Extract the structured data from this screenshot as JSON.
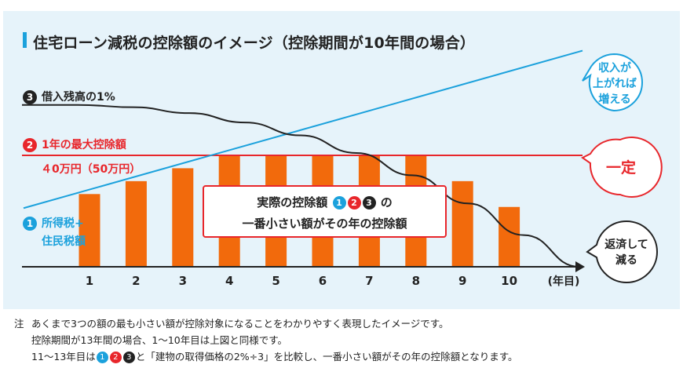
{
  "title": "住宅ローン減税の控除額のイメージ（控除期間が10年間の場合）",
  "labels": {
    "balance_num": "3",
    "balance_text": "借入残高の1%",
    "max_num": "2",
    "max_text": "1年の最大控除額",
    "max_amount": "４0万円（50万円）",
    "tax_num": "1",
    "tax_line1": "所得税+",
    "tax_line2": "住民税額"
  },
  "bubbles": {
    "income": [
      "収入が",
      "上がれば",
      "増える"
    ],
    "fixed": "一定",
    "repay": [
      "返済して",
      "減る"
    ]
  },
  "center_box": {
    "line1_pre": "実際の控除額",
    "n1": "1",
    "n2": "2",
    "n3": "3",
    "line1_post": "の",
    "line2": "一番小さい額がその年の控除額"
  },
  "notes": {
    "prefix": "注",
    "line1": "あくまで3つの額の最も小さい額が控除対象になることをわかりやすく表現したイメージです。",
    "line2": "控除期間が13年間の場合、1〜10年目は上図と同様です。",
    "line3_pre": "11〜13年目は",
    "n1": "1",
    "n2": "2",
    "n3": "3",
    "line3_post": "と「建物の取得価格の2%÷3」を比較し、一番小さい額がその年の控除額となります。"
  },
  "colors": {
    "blue": "#1ba1dc",
    "red": "#e8262b",
    "bar": "#f26a0c",
    "black": "#222222",
    "panel": "#e6f3fa"
  },
  "chart_data": {
    "type": "bar",
    "categories": [
      "1",
      "2",
      "3",
      "4",
      "5",
      "6",
      "7",
      "8",
      "9",
      "10"
    ],
    "x_unit": "(年目)",
    "values": [
      62,
      73,
      84,
      95,
      95,
      95,
      95,
      95,
      73,
      51
    ],
    "max_line": 95,
    "income_line": {
      "start": 50,
      "slope": 11.2
    },
    "balance_curve": [
      138,
      138,
      136,
      131,
      123,
      112,
      97,
      78,
      54,
      27,
      0
    ]
  }
}
